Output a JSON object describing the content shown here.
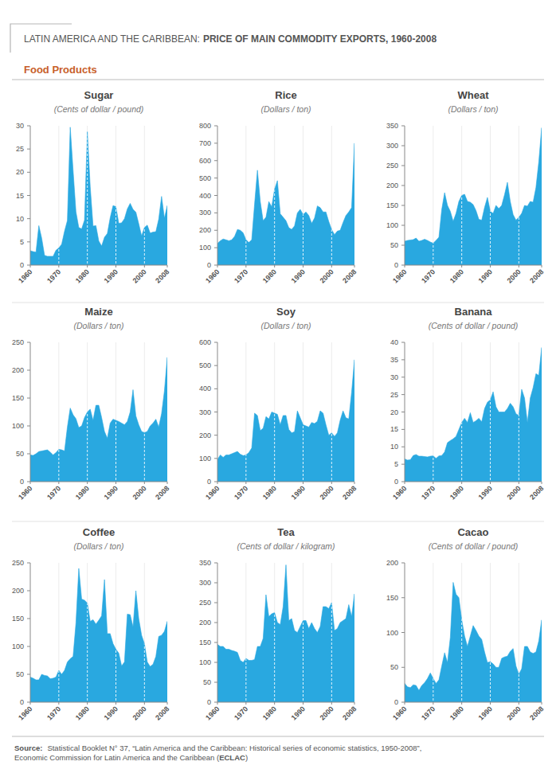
{
  "header": {
    "title_prefix": "LATIN AMERICA AND THE CARIBBEAN:",
    "title_bold": "PRICE OF MAIN COMMODITY EXPORTS, 1960-2008"
  },
  "section": "Food Products",
  "source": {
    "label": "Source:",
    "line1": "Statistical Booklet N° 37, “Latin America and the Caribbean: Historical series of economic statistics, 1950-2008”,",
    "line2_before": "Economic Commission for Latin America and the Caribbean (",
    "line2_bold": "ECLAC",
    "line2_after": ")"
  },
  "chart_data": [
    {
      "type": "area",
      "title": "Sugar",
      "subtitle": "(Cents of dollar / pound)",
      "color": "#29a8e0",
      "grid": true,
      "x": [
        1960,
        1961,
        1962,
        1963,
        1964,
        1965,
        1966,
        1967,
        1968,
        1969,
        1970,
        1971,
        1972,
        1973,
        1974,
        1975,
        1976,
        1977,
        1978,
        1979,
        1980,
        1981,
        1982,
        1983,
        1984,
        1985,
        1986,
        1987,
        1988,
        1989,
        1990,
        1991,
        1992,
        1993,
        1994,
        1995,
        1996,
        1997,
        1998,
        1999,
        2000,
        2001,
        2002,
        2003,
        2004,
        2005,
        2006,
        2007,
        2008
      ],
      "values": [
        3.1,
        2.9,
        2.8,
        8.5,
        5.8,
        2.1,
        1.9,
        1.9,
        1.9,
        3.2,
        3.7,
        4.5,
        7.3,
        9.6,
        29.7,
        20.4,
        11.5,
        8.1,
        7.8,
        9.7,
        28.7,
        16.9,
        8.4,
        8.5,
        5.2,
        4.1,
        6.0,
        6.8,
        10.2,
        12.8,
        12.6,
        9.0,
        9.1,
        10.0,
        12.1,
        13.3,
        12.0,
        11.4,
        8.9,
        6.3,
        8.1,
        8.6,
        6.9,
        7.1,
        7.2,
        9.9,
        14.8,
        10.1,
        12.8
      ],
      "xlim": [
        1960,
        2008
      ],
      "xticks": [
        1960,
        1970,
        1980,
        1990,
        2000,
        2008
      ],
      "ylim": [
        0,
        30
      ],
      "yticks": [
        0,
        5,
        10,
        15,
        20,
        25,
        30
      ]
    },
    {
      "type": "area",
      "title": "Rice",
      "subtitle": "(Dollars / ton)",
      "color": "#29a8e0",
      "grid": true,
      "x": [
        1960,
        1961,
        1962,
        1963,
        1964,
        1965,
        1966,
        1967,
        1968,
        1969,
        1970,
        1971,
        1972,
        1973,
        1974,
        1975,
        1976,
        1977,
        1978,
        1979,
        1980,
        1981,
        1982,
        1983,
        1984,
        1985,
        1986,
        1987,
        1988,
        1989,
        1990,
        1991,
        1992,
        1993,
        1994,
        1995,
        1996,
        1997,
        1998,
        1999,
        2000,
        2001,
        2002,
        2003,
        2004,
        2005,
        2006,
        2007,
        2008
      ],
      "values": [
        125,
        140,
        150,
        145,
        140,
        145,
        165,
        205,
        200,
        185,
        145,
        130,
        145,
        350,
        545,
        365,
        255,
        275,
        365,
        335,
        435,
        485,
        295,
        275,
        255,
        215,
        205,
        225,
        300,
        320,
        290,
        305,
        285,
        240,
        270,
        340,
        330,
        305,
        305,
        250,
        205,
        175,
        195,
        200,
        245,
        285,
        305,
        330,
        700
      ],
      "xlim": [
        1960,
        2008
      ],
      "xticks": [
        1960,
        1970,
        1980,
        1990,
        2000,
        2008
      ],
      "ylim": [
        0,
        800
      ],
      "yticks": [
        0,
        100,
        200,
        300,
        400,
        500,
        600,
        700,
        800
      ]
    },
    {
      "type": "area",
      "title": "Wheat",
      "subtitle": "(Dollars / ton)",
      "color": "#29a8e0",
      "grid": true,
      "x": [
        1960,
        1961,
        1962,
        1963,
        1964,
        1965,
        1966,
        1967,
        1968,
        1969,
        1970,
        1971,
        1972,
        1973,
        1974,
        1975,
        1976,
        1977,
        1978,
        1979,
        1980,
        1981,
        1982,
        1983,
        1984,
        1985,
        1986,
        1987,
        1988,
        1989,
        1990,
        1991,
        1992,
        1993,
        1994,
        1995,
        1996,
        1997,
        1998,
        1999,
        2000,
        2001,
        2002,
        2003,
        2004,
        2005,
        2006,
        2007,
        2008
      ],
      "values": [
        60,
        62,
        63,
        64,
        68,
        60,
        62,
        65,
        62,
        58,
        55,
        62,
        70,
        140,
        182,
        150,
        135,
        110,
        130,
        160,
        175,
        178,
        160,
        158,
        152,
        137,
        115,
        113,
        145,
        170,
        135,
        130,
        150,
        142,
        150,
        177,
        208,
        160,
        127,
        113,
        120,
        130,
        150,
        148,
        160,
        158,
        195,
        260,
        345
      ],
      "xlim": [
        1960,
        2008
      ],
      "xticks": [
        1960,
        1970,
        1980,
        1990,
        2000,
        2008
      ],
      "ylim": [
        0,
        350
      ],
      "yticks": [
        0,
        50,
        100,
        150,
        200,
        250,
        300,
        350
      ]
    },
    {
      "type": "area",
      "title": "Maize",
      "subtitle": "(Dollars / ton)",
      "color": "#29a8e0",
      "grid": true,
      "x": [
        1960,
        1961,
        1962,
        1963,
        1964,
        1965,
        1966,
        1967,
        1968,
        1969,
        1970,
        1971,
        1972,
        1973,
        1974,
        1975,
        1976,
        1977,
        1978,
        1979,
        1980,
        1981,
        1982,
        1983,
        1984,
        1985,
        1986,
        1987,
        1988,
        1989,
        1990,
        1991,
        1992,
        1993,
        1994,
        1995,
        1996,
        1997,
        1998,
        1999,
        2000,
        2001,
        2002,
        2003,
        2004,
        2005,
        2006,
        2007,
        2008
      ],
      "values": [
        48,
        47,
        50,
        54,
        55,
        56,
        57,
        53,
        48,
        52,
        58,
        57,
        55,
        98,
        132,
        120,
        113,
        97,
        100,
        115,
        125,
        130,
        110,
        137,
        137,
        115,
        90,
        78,
        105,
        112,
        110,
        108,
        105,
        102,
        108,
        125,
        165,
        118,
        102,
        90,
        88,
        90,
        100,
        105,
        112,
        98,
        122,
        163,
        223
      ],
      "xlim": [
        1960,
        2008
      ],
      "xticks": [
        1960,
        1970,
        1980,
        1990,
        2000,
        2008
      ],
      "ylim": [
        0,
        250
      ],
      "yticks": [
        0,
        50,
        100,
        150,
        200,
        250
      ]
    },
    {
      "type": "area",
      "title": "Soy",
      "subtitle": "(Dollars / ton)",
      "color": "#29a8e0",
      "grid": true,
      "x": [
        1960,
        1961,
        1962,
        1963,
        1964,
        1965,
        1966,
        1967,
        1968,
        1969,
        1970,
        1971,
        1972,
        1973,
        1974,
        1975,
        1976,
        1977,
        1978,
        1979,
        1980,
        1981,
        1982,
        1983,
        1984,
        1985,
        1986,
        1987,
        1988,
        1989,
        1990,
        1991,
        1992,
        1993,
        1994,
        1995,
        1996,
        1997,
        1998,
        1999,
        2000,
        2001,
        2002,
        2003,
        2004,
        2005,
        2006,
        2007,
        2008
      ],
      "values": [
        95,
        115,
        105,
        115,
        115,
        120,
        125,
        130,
        118,
        112,
        115,
        125,
        145,
        295,
        285,
        220,
        230,
        280,
        270,
        300,
        295,
        290,
        245,
        285,
        285,
        225,
        210,
        215,
        305,
        275,
        245,
        240,
        235,
        255,
        250,
        260,
        305,
        295,
        245,
        200,
        210,
        195,
        210,
        265,
        305,
        275,
        270,
        385,
        525
      ],
      "xlim": [
        1960,
        2008
      ],
      "xticks": [
        1960,
        1970,
        1980,
        1990,
        2000,
        2008
      ],
      "ylim": [
        0,
        600
      ],
      "yticks": [
        0,
        100,
        200,
        300,
        400,
        500,
        600
      ]
    },
    {
      "type": "area",
      "title": "Banana",
      "subtitle": "(Cents of dollar / pound)",
      "color": "#29a8e0",
      "grid": true,
      "x": [
        1960,
        1961,
        1962,
        1963,
        1964,
        1965,
        1966,
        1967,
        1968,
        1969,
        1970,
        1971,
        1972,
        1973,
        1974,
        1975,
        1976,
        1977,
        1978,
        1979,
        1980,
        1981,
        1982,
        1983,
        1984,
        1985,
        1986,
        1987,
        1988,
        1989,
        1990,
        1991,
        1992,
        1993,
        1994,
        1995,
        1996,
        1997,
        1998,
        1999,
        2000,
        2001,
        2002,
        2003,
        2004,
        2005,
        2006,
        2007,
        2008
      ],
      "values": [
        6.5,
        6.2,
        6.3,
        7.5,
        7.8,
        7.3,
        7.3,
        7.2,
        7.1,
        7.3,
        7.4,
        6.7,
        7.4,
        7.5,
        8.5,
        11.2,
        11.8,
        12.3,
        13.0,
        15.0,
        17.0,
        18.2,
        17.0,
        19.8,
        17.0,
        17.5,
        18.2,
        17.2,
        21.0,
        22.8,
        23.5,
        25.8,
        21.5,
        20.0,
        20.0,
        20.0,
        21.0,
        22.5,
        21.5,
        19.5,
        19.0,
        26.5,
        24.0,
        17.0,
        24.0,
        27.0,
        31.0,
        30.5,
        38.5
      ],
      "xlim": [
        1960,
        2008
      ],
      "xticks": [
        1960,
        1970,
        1980,
        1990,
        2000,
        2008
      ],
      "ylim": [
        0,
        40
      ],
      "yticks": [
        0,
        5,
        10,
        15,
        20,
        25,
        30,
        35,
        40
      ]
    },
    {
      "type": "area",
      "title": "Coffee",
      "subtitle": "(Dollars / ton)",
      "color": "#29a8e0",
      "grid": true,
      "x": [
        1960,
        1961,
        1962,
        1963,
        1964,
        1965,
        1966,
        1967,
        1968,
        1969,
        1970,
        1971,
        1972,
        1973,
        1974,
        1975,
        1976,
        1977,
        1978,
        1979,
        1980,
        1981,
        1982,
        1983,
        1984,
        1985,
        1986,
        1987,
        1988,
        1989,
        1990,
        1991,
        1992,
        1993,
        1994,
        1995,
        1996,
        1997,
        1998,
        1999,
        2000,
        2001,
        2002,
        2003,
        2004,
        2005,
        2006,
        2007,
        2008
      ],
      "values": [
        45,
        43,
        40,
        40,
        50,
        48,
        47,
        42,
        43,
        45,
        57,
        50,
        57,
        72,
        78,
        82,
        142,
        240,
        185,
        183,
        178,
        145,
        148,
        140,
        147,
        155,
        220,
        123,
        123,
        105,
        95,
        88,
        65,
        72,
        158,
        157,
        135,
        200,
        150,
        120,
        105,
        72,
        64,
        68,
        82,
        118,
        120,
        127,
        145
      ],
      "xlim": [
        1960,
        2008
      ],
      "xticks": [
        1960,
        1970,
        1980,
        1990,
        2000,
        2008
      ],
      "ylim": [
        0,
        250
      ],
      "yticks": [
        0,
        50,
        100,
        150,
        200,
        250
      ]
    },
    {
      "type": "area",
      "title": "Tea",
      "subtitle": "(Cents of dollar / kilogram)",
      "color": "#29a8e0",
      "grid": true,
      "x": [
        1960,
        1961,
        1962,
        1963,
        1964,
        1965,
        1966,
        1967,
        1968,
        1969,
        1970,
        1971,
        1972,
        1973,
        1974,
        1975,
        1976,
        1977,
        1978,
        1979,
        1980,
        1981,
        1982,
        1983,
        1984,
        1985,
        1986,
        1987,
        1988,
        1989,
        1990,
        1991,
        1992,
        1993,
        1994,
        1995,
        1996,
        1997,
        1998,
        1999,
        2000,
        2001,
        2002,
        2003,
        2004,
        2005,
        2006,
        2007,
        2008
      ],
      "values": [
        145,
        140,
        140,
        133,
        133,
        130,
        128,
        125,
        105,
        100,
        110,
        105,
        105,
        107,
        140,
        140,
        160,
        270,
        215,
        222,
        225,
        200,
        195,
        240,
        345,
        205,
        210,
        180,
        175,
        190,
        205,
        205,
        185,
        200,
        185,
        175,
        190,
        240,
        240,
        235,
        250,
        180,
        185,
        200,
        205,
        210,
        245,
        215,
        272
      ],
      "xlim": [
        1960,
        2008
      ],
      "xticks": [
        1960,
        1970,
        1980,
        1990,
        2000,
        2008
      ],
      "ylim": [
        0,
        350
      ],
      "yticks": [
        0,
        50,
        100,
        150,
        200,
        250,
        300,
        350
      ]
    },
    {
      "type": "area",
      "title": "Cacao",
      "subtitle": "(Cents of dollar / pound)",
      "color": "#29a8e0",
      "grid": true,
      "x": [
        1960,
        1961,
        1962,
        1963,
        1964,
        1965,
        1966,
        1967,
        1968,
        1969,
        1970,
        1971,
        1972,
        1973,
        1974,
        1975,
        1976,
        1977,
        1978,
        1979,
        1980,
        1981,
        1982,
        1983,
        1984,
        1985,
        1986,
        1987,
        1988,
        1989,
        1990,
        1991,
        1992,
        1993,
        1994,
        1995,
        1996,
        1997,
        1998,
        1999,
        2000,
        2001,
        2002,
        2003,
        2004,
        2005,
        2006,
        2007,
        2008
      ],
      "values": [
        27,
        22,
        21,
        25,
        24,
        17,
        24,
        28,
        34,
        42,
        34,
        27,
        32,
        52,
        71,
        57,
        93,
        172,
        155,
        150,
        118,
        95,
        80,
        95,
        110,
        103,
        95,
        90,
        72,
        57,
        58,
        55,
        50,
        50,
        63,
        65,
        66,
        73,
        77,
        52,
        40,
        48,
        80,
        80,
        72,
        70,
        72,
        88,
        118
      ],
      "xlim": [
        1960,
        2008
      ],
      "xticks": [
        1960,
        1970,
        1980,
        1990,
        2000,
        2008
      ],
      "ylim": [
        0,
        200
      ],
      "yticks": [
        0,
        50,
        100,
        150,
        200
      ]
    }
  ]
}
